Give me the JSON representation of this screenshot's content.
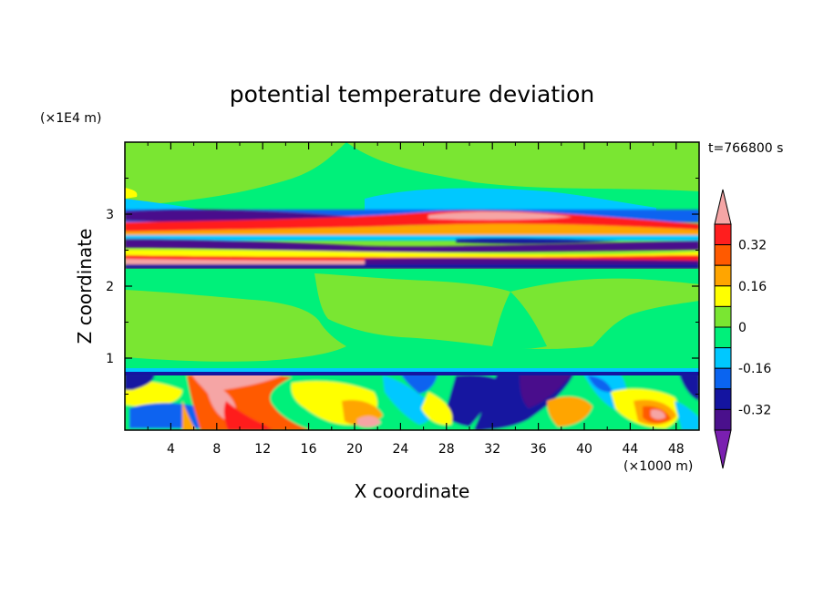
{
  "chart_data": {
    "type": "heatmap",
    "title": "potential temperature deviation",
    "xlabel": "X coordinate",
    "ylabel": "Z coordinate",
    "x_unit": "(×1000 m)",
    "y_unit": "(×1E4 m)",
    "time_label": "t=766800 s",
    "xlim": [
      0,
      50
    ],
    "ylim": [
      0,
      4
    ],
    "x_ticks": [
      "4",
      "8",
      "12",
      "16",
      "20",
      "24",
      "28",
      "32",
      "36",
      "40",
      "44",
      "48"
    ],
    "y_ticks": [
      "1",
      "2",
      "3"
    ],
    "colorbar": {
      "levels": [
        -0.4,
        -0.32,
        -0.24,
        -0.16,
        -0.08,
        0,
        0.08,
        0.16,
        0.24,
        0.32,
        0.4
      ],
      "tick_labels": [
        "0.32",
        "0.16",
        "0",
        "-0.16",
        "-0.32"
      ],
      "colors": [
        "#7a1fb0",
        "#4a108c",
        "#1414a0",
        "#0a64f0",
        "#00c8ff",
        "#00f07a",
        "#7ae632",
        "#ffff00",
        "#ffa500",
        "#ff5a00",
        "#ff1e1e",
        "#f5a5a5"
      ],
      "extend": "both"
    }
  }
}
